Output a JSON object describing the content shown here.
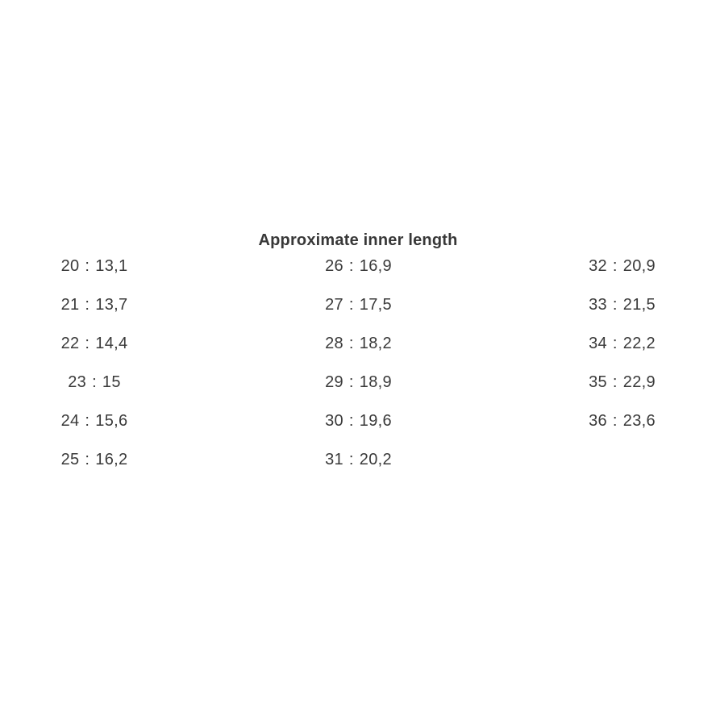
{
  "title": "Approximate inner length",
  "separator": ":",
  "colors": {
    "text": "#3a3a3a",
    "background": "#ffffff"
  },
  "columns": [
    {
      "entries": [
        {
          "size": "20",
          "length": "13,1"
        },
        {
          "size": "21",
          "length": "13,7"
        },
        {
          "size": "22",
          "length": "14,4"
        },
        {
          "size": "23",
          "length": "15"
        },
        {
          "size": "24",
          "length": "15,6"
        },
        {
          "size": "25",
          "length": "16,2"
        }
      ]
    },
    {
      "entries": [
        {
          "size": "26",
          "length": "16,9"
        },
        {
          "size": "27",
          "length": "17,5"
        },
        {
          "size": "28",
          "length": "18,2"
        },
        {
          "size": "29",
          "length": "18,9"
        },
        {
          "size": "30",
          "length": "19,6"
        },
        {
          "size": "31",
          "length": "20,2"
        }
      ]
    },
    {
      "entries": [
        {
          "size": "32",
          "length": "20,9"
        },
        {
          "size": "33",
          "length": "21,5"
        },
        {
          "size": "34",
          "length": "22,2"
        },
        {
          "size": "35",
          "length": "22,9"
        },
        {
          "size": "36",
          "length": "23,6"
        }
      ]
    }
  ],
  "chart_data": {
    "type": "table",
    "title": "Approximate inner length",
    "columns": [
      "size",
      "inner_length_cm"
    ],
    "rows": [
      [
        20,
        "13,1"
      ],
      [
        21,
        "13,7"
      ],
      [
        22,
        "14,4"
      ],
      [
        23,
        "15"
      ],
      [
        24,
        "15,6"
      ],
      [
        25,
        "16,2"
      ],
      [
        26,
        "16,9"
      ],
      [
        27,
        "17,5"
      ],
      [
        28,
        "18,2"
      ],
      [
        29,
        "18,9"
      ],
      [
        30,
        "19,6"
      ],
      [
        31,
        "20,2"
      ],
      [
        32,
        "20,9"
      ],
      [
        33,
        "21,5"
      ],
      [
        34,
        "22,2"
      ],
      [
        35,
        "22,9"
      ],
      [
        36,
        "23,6"
      ]
    ],
    "layout": "17 size:length pairs flowed top-to-bottom into 3 columns of 6, 6 and 5 entries; title centered above middle column"
  }
}
